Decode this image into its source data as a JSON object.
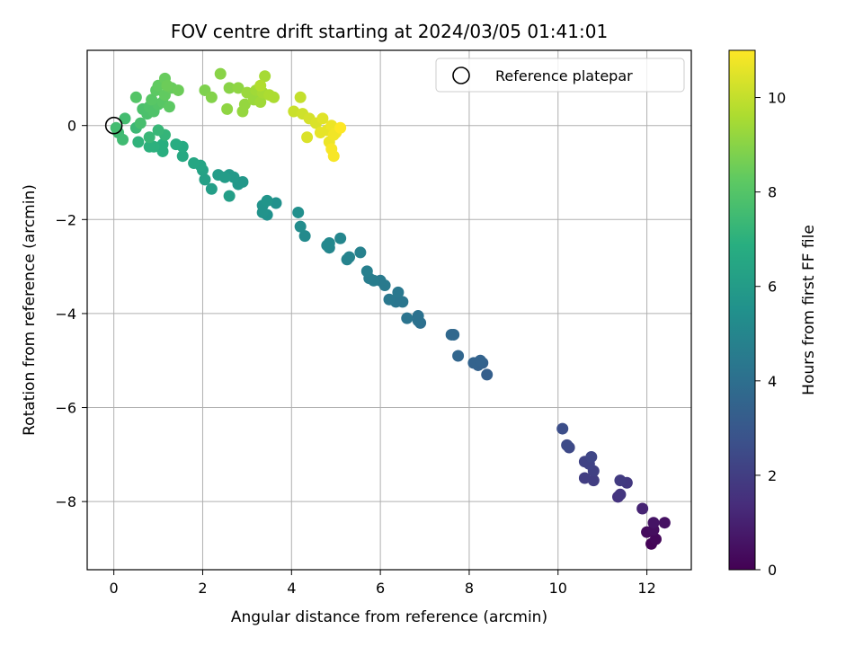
{
  "chart_data": {
    "type": "scatter",
    "title": "FOV centre drift starting at 2024/03/05 01:41:01",
    "xlabel": "Angular distance from reference (arcmin)",
    "ylabel": "Rotation from reference (arcmin)",
    "xlim": [
      -0.6,
      13.0
    ],
    "ylim": [
      -9.45,
      1.6
    ],
    "xticks": [
      0,
      2,
      4,
      6,
      8,
      10,
      12
    ],
    "yticks": [
      0,
      -2,
      -4,
      -6,
      -8
    ],
    "grid": true,
    "legend": {
      "placement": "top-right",
      "entries": [
        {
          "label": "Reference platepar",
          "marker": "open-circle"
        }
      ]
    },
    "reference_point": {
      "x": 0,
      "y": 0
    },
    "colorbar": {
      "label": "Hours from first FF file",
      "colormap": "viridis",
      "range": [
        0,
        11
      ],
      "ticks": [
        0,
        2,
        4,
        6,
        8,
        10
      ]
    },
    "points": [
      {
        "x": 12.1,
        "y": -8.9,
        "h": 0.1
      },
      {
        "x": 12.2,
        "y": -8.8,
        "h": 0.2
      },
      {
        "x": 12.0,
        "y": -8.65,
        "h": 0.3
      },
      {
        "x": 12.15,
        "y": -8.6,
        "h": 0.4
      },
      {
        "x": 12.4,
        "y": -8.45,
        "h": 0.5
      },
      {
        "x": 12.15,
        "y": -8.45,
        "h": 0.6
      },
      {
        "x": 11.9,
        "y": -8.15,
        "h": 1.1
      },
      {
        "x": 11.35,
        "y": -7.9,
        "h": 1.6
      },
      {
        "x": 11.4,
        "y": -7.85,
        "h": 1.7
      },
      {
        "x": 11.55,
        "y": -7.6,
        "h": 1.8
      },
      {
        "x": 11.4,
        "y": -7.55,
        "h": 1.9
      },
      {
        "x": 10.8,
        "y": -7.55,
        "h": 2.0
      },
      {
        "x": 10.6,
        "y": -7.5,
        "h": 2.0
      },
      {
        "x": 10.8,
        "y": -7.35,
        "h": 2.1
      },
      {
        "x": 10.7,
        "y": -7.2,
        "h": 2.2
      },
      {
        "x": 10.6,
        "y": -7.15,
        "h": 2.2
      },
      {
        "x": 10.75,
        "y": -7.05,
        "h": 2.3
      },
      {
        "x": 10.25,
        "y": -6.85,
        "h": 2.4
      },
      {
        "x": 10.2,
        "y": -6.8,
        "h": 2.5
      },
      {
        "x": 10.1,
        "y": -6.45,
        "h": 2.6
      },
      {
        "x": 8.4,
        "y": -5.3,
        "h": 3.3
      },
      {
        "x": 8.3,
        "y": -5.05,
        "h": 3.4
      },
      {
        "x": 8.2,
        "y": -5.1,
        "h": 3.4
      },
      {
        "x": 8.1,
        "y": -5.05,
        "h": 3.5
      },
      {
        "x": 8.25,
        "y": -5.0,
        "h": 3.5
      },
      {
        "x": 7.75,
        "y": -4.9,
        "h": 3.6
      },
      {
        "x": 7.65,
        "y": -4.45,
        "h": 3.7
      },
      {
        "x": 7.6,
        "y": -4.45,
        "h": 3.7
      },
      {
        "x": 6.9,
        "y": -4.2,
        "h": 4.0
      },
      {
        "x": 6.85,
        "y": -4.05,
        "h": 4.1
      },
      {
        "x": 6.85,
        "y": -4.15,
        "h": 4.1
      },
      {
        "x": 6.6,
        "y": -4.1,
        "h": 4.2
      },
      {
        "x": 6.5,
        "y": -3.75,
        "h": 4.3
      },
      {
        "x": 6.35,
        "y": -3.75,
        "h": 4.3
      },
      {
        "x": 6.4,
        "y": -3.55,
        "h": 4.4
      },
      {
        "x": 6.2,
        "y": -3.7,
        "h": 4.4
      },
      {
        "x": 6.1,
        "y": -3.4,
        "h": 4.5
      },
      {
        "x": 6.0,
        "y": -3.3,
        "h": 4.5
      },
      {
        "x": 5.85,
        "y": -3.3,
        "h": 4.6
      },
      {
        "x": 5.75,
        "y": -3.25,
        "h": 4.6
      },
      {
        "x": 5.7,
        "y": -3.1,
        "h": 4.7
      },
      {
        "x": 5.55,
        "y": -2.7,
        "h": 4.8
      },
      {
        "x": 5.3,
        "y": -2.8,
        "h": 4.9
      },
      {
        "x": 5.25,
        "y": -2.85,
        "h": 4.9
      },
      {
        "x": 5.1,
        "y": -2.4,
        "h": 5.0
      },
      {
        "x": 4.85,
        "y": -2.6,
        "h": 5.0
      },
      {
        "x": 4.85,
        "y": -2.5,
        "h": 5.1
      },
      {
        "x": 4.8,
        "y": -2.55,
        "h": 5.1
      },
      {
        "x": 4.3,
        "y": -2.35,
        "h": 5.2
      },
      {
        "x": 4.2,
        "y": -2.15,
        "h": 5.3
      },
      {
        "x": 4.15,
        "y": -1.85,
        "h": 5.4
      },
      {
        "x": 3.65,
        "y": -1.65,
        "h": 5.5
      },
      {
        "x": 3.45,
        "y": -1.9,
        "h": 5.5
      },
      {
        "x": 3.35,
        "y": -1.85,
        "h": 5.6
      },
      {
        "x": 3.35,
        "y": -1.7,
        "h": 5.6
      },
      {
        "x": 3.45,
        "y": -1.6,
        "h": 5.7
      },
      {
        "x": 2.9,
        "y": -1.2,
        "h": 5.8
      },
      {
        "x": 2.8,
        "y": -1.25,
        "h": 5.8
      },
      {
        "x": 2.7,
        "y": -1.1,
        "h": 5.9
      },
      {
        "x": 2.6,
        "y": -1.05,
        "h": 5.9
      },
      {
        "x": 2.5,
        "y": -1.1,
        "h": 6.0
      },
      {
        "x": 2.35,
        "y": -1.05,
        "h": 6.0
      },
      {
        "x": 2.6,
        "y": -1.5,
        "h": 6.1
      },
      {
        "x": 2.2,
        "y": -1.35,
        "h": 6.1
      },
      {
        "x": 2.05,
        "y": -1.15,
        "h": 6.2
      },
      {
        "x": 2.0,
        "y": -0.95,
        "h": 6.3
      },
      {
        "x": 1.95,
        "y": -0.85,
        "h": 6.4
      },
      {
        "x": 1.8,
        "y": -0.8,
        "h": 6.5
      },
      {
        "x": 1.55,
        "y": -0.65,
        "h": 6.6
      },
      {
        "x": 1.55,
        "y": -0.45,
        "h": 6.7
      },
      {
        "x": 1.4,
        "y": -0.4,
        "h": 6.8
      },
      {
        "x": 1.1,
        "y": -0.55,
        "h": 6.9
      },
      {
        "x": 1.1,
        "y": -0.4,
        "h": 6.9
      },
      {
        "x": 0.9,
        "y": -0.45,
        "h": 7.0
      },
      {
        "x": 0.8,
        "y": -0.45,
        "h": 7.0
      },
      {
        "x": 0.55,
        "y": -0.35,
        "h": 7.1
      },
      {
        "x": 1.15,
        "y": -0.2,
        "h": 7.2
      },
      {
        "x": 1.0,
        "y": -0.1,
        "h": 7.3
      },
      {
        "x": 0.8,
        "y": -0.25,
        "h": 7.3
      },
      {
        "x": 0.5,
        "y": -0.05,
        "h": 7.4
      },
      {
        "x": 0.2,
        "y": -0.3,
        "h": 7.5
      },
      {
        "x": 0.1,
        "y": -0.15,
        "h": 7.5
      },
      {
        "x": 0.05,
        "y": -0.05,
        "h": 7.6
      },
      {
        "x": 0.25,
        "y": 0.15,
        "h": 7.6
      },
      {
        "x": 0.6,
        "y": 0.05,
        "h": 7.7
      },
      {
        "x": 0.75,
        "y": 0.25,
        "h": 7.8
      },
      {
        "x": 0.65,
        "y": 0.35,
        "h": 7.8
      },
      {
        "x": 0.8,
        "y": 0.4,
        "h": 7.9
      },
      {
        "x": 0.9,
        "y": 0.3,
        "h": 7.9
      },
      {
        "x": 1.0,
        "y": 0.45,
        "h": 8.0
      },
      {
        "x": 0.5,
        "y": 0.6,
        "h": 8.0
      },
      {
        "x": 0.85,
        "y": 0.55,
        "h": 8.1
      },
      {
        "x": 1.1,
        "y": 0.5,
        "h": 8.1
      },
      {
        "x": 1.25,
        "y": 0.4,
        "h": 8.2
      },
      {
        "x": 0.95,
        "y": 0.75,
        "h": 8.2
      },
      {
        "x": 1.15,
        "y": 0.65,
        "h": 8.3
      },
      {
        "x": 1.0,
        "y": 0.85,
        "h": 8.3
      },
      {
        "x": 1.15,
        "y": 1.0,
        "h": 8.4
      },
      {
        "x": 1.3,
        "y": 0.8,
        "h": 8.4
      },
      {
        "x": 1.45,
        "y": 0.75,
        "h": 8.5
      },
      {
        "x": 1.2,
        "y": 0.85,
        "h": 8.5
      },
      {
        "x": 2.05,
        "y": 0.75,
        "h": 8.8
      },
      {
        "x": 2.2,
        "y": 0.6,
        "h": 8.9
      },
      {
        "x": 2.4,
        "y": 1.1,
        "h": 9.0
      },
      {
        "x": 2.6,
        "y": 0.8,
        "h": 9.0
      },
      {
        "x": 2.55,
        "y": 0.35,
        "h": 9.1
      },
      {
        "x": 2.8,
        "y": 0.8,
        "h": 9.1
      },
      {
        "x": 2.9,
        "y": 0.3,
        "h": 9.2
      },
      {
        "x": 2.95,
        "y": 0.45,
        "h": 9.2
      },
      {
        "x": 3.0,
        "y": 0.7,
        "h": 9.3
      },
      {
        "x": 3.15,
        "y": 0.55,
        "h": 9.3
      },
      {
        "x": 3.2,
        "y": 0.75,
        "h": 9.4
      },
      {
        "x": 3.3,
        "y": 0.5,
        "h": 9.4
      },
      {
        "x": 3.35,
        "y": 0.7,
        "h": 9.5
      },
      {
        "x": 3.4,
        "y": 1.05,
        "h": 9.5
      },
      {
        "x": 3.5,
        "y": 0.65,
        "h": 9.6
      },
      {
        "x": 3.6,
        "y": 0.6,
        "h": 9.6
      },
      {
        "x": 3.3,
        "y": 0.85,
        "h": 9.7
      },
      {
        "x": 4.2,
        "y": 0.6,
        "h": 10.0
      },
      {
        "x": 4.05,
        "y": 0.3,
        "h": 10.1
      },
      {
        "x": 4.25,
        "y": 0.25,
        "h": 10.2
      },
      {
        "x": 4.4,
        "y": 0.15,
        "h": 10.3
      },
      {
        "x": 4.55,
        "y": 0.05,
        "h": 10.4
      },
      {
        "x": 4.35,
        "y": -0.25,
        "h": 10.4
      },
      {
        "x": 4.7,
        "y": 0.15,
        "h": 10.5
      },
      {
        "x": 4.8,
        "y": -0.1,
        "h": 10.6
      },
      {
        "x": 4.65,
        "y": -0.15,
        "h": 10.6
      },
      {
        "x": 4.9,
        "y": 0.0,
        "h": 10.7
      },
      {
        "x": 4.85,
        "y": -0.35,
        "h": 10.7
      },
      {
        "x": 4.95,
        "y": -0.2,
        "h": 10.8
      },
      {
        "x": 5.0,
        "y": -0.15,
        "h": 10.8
      },
      {
        "x": 4.9,
        "y": -0.5,
        "h": 10.9
      },
      {
        "x": 4.95,
        "y": -0.65,
        "h": 10.9
      },
      {
        "x": 5.1,
        "y": -0.05,
        "h": 11.0
      }
    ]
  }
}
